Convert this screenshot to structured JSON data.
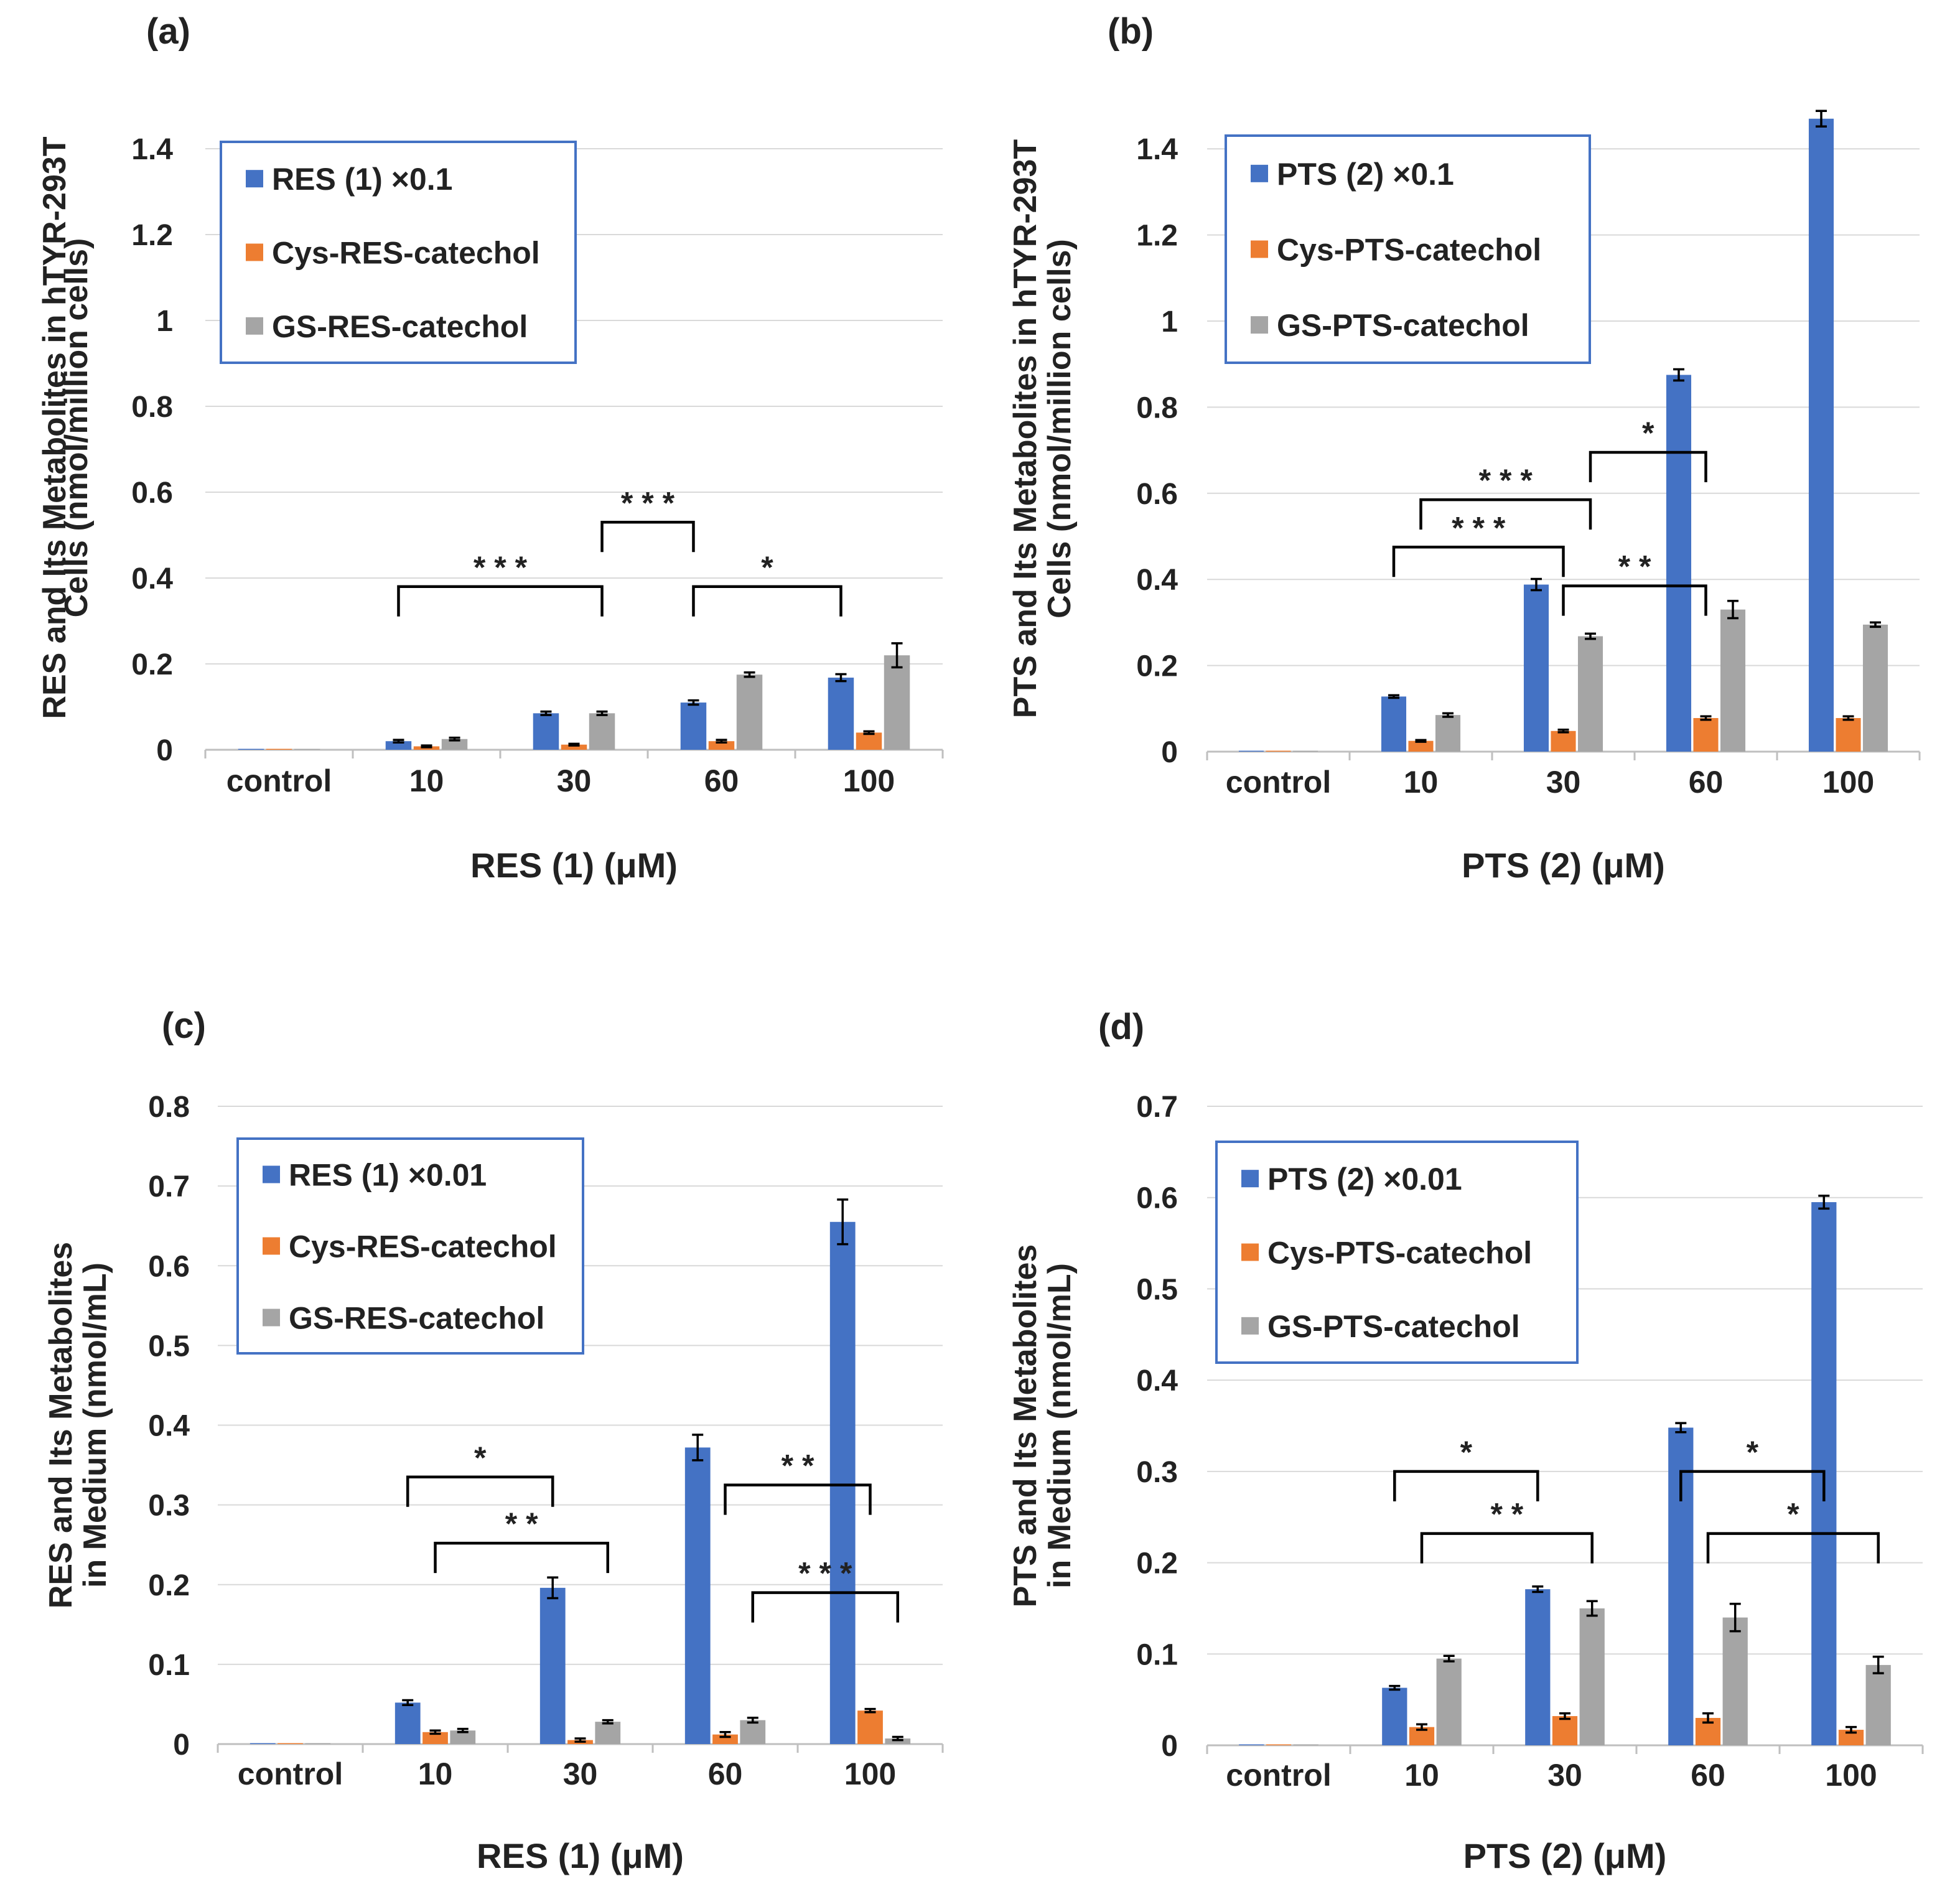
{
  "colors": {
    "blue": "#4472c4",
    "orange": "#ed7d31",
    "gray": "#a5a5a5"
  },
  "chart_data": [
    {
      "type": "bar",
      "panel_label": "(a)",
      "ylabel_lines": [
        "RES and Its Metabolites in hTYR-293T",
        "Cells (nmol/million cells)"
      ],
      "xlabel": "RES (1)  (μM)",
      "categories": [
        "control",
        "10",
        "30",
        "60",
        "100"
      ],
      "ylim": [
        0,
        1.5
      ],
      "ytick_values": [
        0,
        0.2,
        0.4,
        0.6,
        0.8,
        1,
        1.2,
        1.4
      ],
      "ytick_labels": [
        "0",
        "0.2",
        "0.4",
        "0.6",
        "0.8",
        "1",
        "1.2",
        "1.4"
      ],
      "series": [
        {
          "name": "RES (1) ×0.1",
          "color": "#4472c4",
          "values": [
            0,
            0.02,
            0.085,
            0.11,
            0.168
          ],
          "errors": [
            0,
            0.003,
            0.004,
            0.005,
            0.008
          ]
        },
        {
          "name": "Cys-RES-catechol",
          "color": "#ed7d31",
          "values": [
            0,
            0.008,
            0.012,
            0.02,
            0.04
          ],
          "errors": [
            0,
            0.002,
            0.002,
            0.003,
            0.003
          ]
        },
        {
          "name": "GS-RES-catechol",
          "color": "#a5a5a5",
          "values": [
            0,
            0.025,
            0.085,
            0.175,
            0.22
          ],
          "errors": [
            0,
            0.003,
            0.004,
            0.005,
            0.028
          ]
        }
      ],
      "significance": [
        {
          "label": "* * *",
          "from": [
            1,
            0
          ],
          "to": [
            2,
            2
          ],
          "y": 0.38
        },
        {
          "label": "* * *",
          "from": [
            2,
            2
          ],
          "to": [
            3,
            0
          ],
          "y": 0.53
        },
        {
          "label": "*",
          "from": [
            3,
            0
          ],
          "to": [
            4,
            0
          ],
          "y": 0.38
        }
      ]
    },
    {
      "type": "bar",
      "panel_label": "(b)",
      "ylabel_lines": [
        "PTS and Its Metabolites in hTYR-293T",
        "Cells (nmol/million cells)"
      ],
      "xlabel": "PTS (2) (μM)",
      "categories": [
        "control",
        "10",
        "30",
        "60",
        "100"
      ],
      "ylim": [
        0,
        1.5
      ],
      "ytick_values": [
        0,
        0.2,
        0.4,
        0.6,
        0.8,
        1,
        1.2,
        1.4
      ],
      "ytick_labels": [
        "0",
        "0.2",
        "0.4",
        "0.6",
        "0.8",
        "1",
        "1.2",
        "1.4"
      ],
      "series": [
        {
          "name": "PTS (2) ×0.1",
          "color": "#4472c4",
          "values": [
            0,
            0.128,
            0.388,
            0.875,
            1.47
          ],
          "errors": [
            0,
            0.003,
            0.013,
            0.013,
            0.018
          ]
        },
        {
          "name": "Cys-PTS-catechol",
          "color": "#ed7d31",
          "values": [
            0,
            0.025,
            0.048,
            0.078,
            0.078
          ],
          "errors": [
            0,
            0.002,
            0.003,
            0.004,
            0.004
          ]
        },
        {
          "name": "GS-PTS-catechol",
          "color": "#a5a5a5",
          "values": [
            0,
            0.085,
            0.268,
            0.33,
            0.295
          ],
          "errors": [
            0,
            0.004,
            0.006,
            0.02,
            0.005
          ]
        }
      ],
      "significance": [
        {
          "label": "* * *",
          "from": [
            1,
            0
          ],
          "to": [
            2,
            1
          ],
          "y": 0.475
        },
        {
          "label": "* * *",
          "from": [
            1,
            1
          ],
          "to": [
            2,
            2
          ],
          "y": 0.585
        },
        {
          "label": "*",
          "from": [
            2,
            2
          ],
          "to": [
            3,
            1
          ],
          "y": 0.695
        },
        {
          "label": "* *",
          "from": [
            2,
            1
          ],
          "to": [
            3,
            1
          ],
          "y": 0.385
        }
      ]
    },
    {
      "type": "bar",
      "panel_label": "(c)",
      "ylabel_lines": [
        "RES and Its Metabolites",
        "in Medium (nmol/mL)"
      ],
      "xlabel": "RES (1) (μM)",
      "categories": [
        "control",
        "10",
        "30",
        "60",
        "100"
      ],
      "ylim": [
        0,
        0.8
      ],
      "ytick_values": [
        0,
        0.1,
        0.2,
        0.3,
        0.4,
        0.5,
        0.6,
        0.7,
        0.8
      ],
      "ytick_labels": [
        "0",
        "0.1",
        "0.2",
        "0.3",
        "0.4",
        "0.5",
        "0.6",
        "0.7",
        "0.8"
      ],
      "series": [
        {
          "name": "RES (1) ×0.01",
          "color": "#4472c4",
          "values": [
            0,
            0.052,
            0.196,
            0.372,
            0.655
          ],
          "errors": [
            0,
            0.003,
            0.013,
            0.016,
            0.028
          ]
        },
        {
          "name": "Cys-RES-catechol",
          "color": "#ed7d31",
          "values": [
            0,
            0.015,
            0.005,
            0.012,
            0.042
          ],
          "errors": [
            0,
            0.002,
            0.002,
            0.003,
            0.002
          ]
        },
        {
          "name": "GS-RES-catechol",
          "color": "#a5a5a5",
          "values": [
            0,
            0.017,
            0.028,
            0.03,
            0.007
          ],
          "errors": [
            0,
            0.002,
            0.002,
            0.003,
            0.002
          ]
        }
      ],
      "significance": [
        {
          "label": "*",
          "from": [
            1,
            0
          ],
          "to": [
            2,
            0
          ],
          "y": 0.335
        },
        {
          "label": "* *",
          "from": [
            1,
            1
          ],
          "to": [
            2,
            2
          ],
          "y": 0.252
        },
        {
          "label": "* *",
          "from": [
            3,
            1
          ],
          "to": [
            4,
            1
          ],
          "y": 0.325
        },
        {
          "label": "* * *",
          "from": [
            3,
            2
          ],
          "to": [
            4,
            2
          ],
          "y": 0.19
        }
      ]
    },
    {
      "type": "bar",
      "panel_label": "(d)",
      "ylabel_lines": [
        "PTS and Its Metabolites",
        "in Medium (nmol/mL)"
      ],
      "xlabel": "PTS (2) (μM)",
      "categories": [
        "control",
        "10",
        "30",
        "60",
        "100"
      ],
      "ylim": [
        0,
        0.7
      ],
      "ytick_values": [
        0,
        0.1,
        0.2,
        0.3,
        0.4,
        0.5,
        0.6,
        0.7
      ],
      "ytick_labels": [
        "0",
        "0.1",
        "0.2",
        "0.3",
        "0.4",
        "0.5",
        "0.6",
        "0.7"
      ],
      "series": [
        {
          "name": "PTS (2) ×0.01",
          "color": "#4472c4",
          "values": [
            0,
            0.063,
            0.171,
            0.348,
            0.595
          ],
          "errors": [
            0,
            0.002,
            0.003,
            0.005,
            0.007
          ]
        },
        {
          "name": "Cys-PTS-catechol",
          "color": "#ed7d31",
          "values": [
            0,
            0.02,
            0.032,
            0.03,
            0.017
          ],
          "errors": [
            0,
            0.003,
            0.003,
            0.005,
            0.003
          ]
        },
        {
          "name": "GS-PTS-catechol",
          "color": "#a5a5a5",
          "values": [
            0,
            0.095,
            0.15,
            0.14,
            0.088
          ],
          "errors": [
            0,
            0.003,
            0.008,
            0.015,
            0.009
          ]
        }
      ],
      "significance": [
        {
          "label": "*",
          "from": [
            1,
            0
          ],
          "to": [
            2,
            0
          ],
          "y": 0.3
        },
        {
          "label": "* *",
          "from": [
            1,
            1
          ],
          "to": [
            2,
            2
          ],
          "y": 0.232
        },
        {
          "label": "*",
          "from": [
            3,
            0
          ],
          "to": [
            4,
            0
          ],
          "y": 0.3
        },
        {
          "label": "*",
          "from": [
            3,
            1
          ],
          "to": [
            4,
            2
          ],
          "y": 0.232
        }
      ]
    }
  ]
}
